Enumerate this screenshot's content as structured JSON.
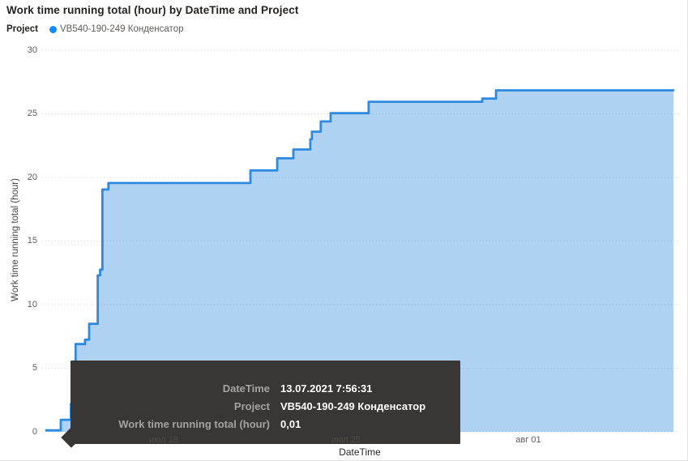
{
  "header": {
    "title": "Work time running total (hour) by DateTime and Project"
  },
  "legend": {
    "label": "Project",
    "item": "VB540-190-249 Конденсатор",
    "dot_color": "#118DFF"
  },
  "chart_data": {
    "type": "area",
    "title": "Work time running total (hour) by DateTime and Project",
    "xlabel": "DateTime",
    "ylabel": "Work time running total (hour)",
    "x_unit": "days since 2021-07-13 00:00",
    "xlim": [
      0.49,
      24.57
    ],
    "ylim": [
      0,
      30
    ],
    "yticks": [
      0,
      5,
      10,
      15,
      20,
      25,
      30
    ],
    "xticks": [
      {
        "t": 5,
        "label": "июл 18",
        "dimmed": true
      },
      {
        "t": 12,
        "label": "июл 25",
        "dimmed": true
      },
      {
        "t": 19,
        "label": "авг 01",
        "dimmed": false
      }
    ],
    "grid": "dotted-horizontal",
    "legend_position": "top-left",
    "series": [
      {
        "name": "VB540-190-249 Конденсатор",
        "line_color": "#2E8AE0",
        "fill_color": "rgba(46,138,224,0.38)",
        "step_points": [
          [
            0.49,
            0.12
          ],
          [
            1.05,
            0.12
          ],
          [
            1.05,
            0.95
          ],
          [
            1.44,
            0.95
          ],
          [
            1.44,
            2.2
          ],
          [
            1.5,
            2.2
          ],
          [
            1.5,
            3.6
          ],
          [
            1.56,
            3.6
          ],
          [
            1.56,
            5.0
          ],
          [
            1.62,
            5.0
          ],
          [
            1.62,
            6.9
          ],
          [
            1.98,
            6.9
          ],
          [
            1.98,
            7.25
          ],
          [
            2.14,
            7.25
          ],
          [
            2.14,
            8.5
          ],
          [
            2.47,
            8.5
          ],
          [
            2.47,
            12.3
          ],
          [
            2.56,
            12.3
          ],
          [
            2.56,
            12.75
          ],
          [
            2.65,
            12.75
          ],
          [
            2.65,
            19.05
          ],
          [
            2.88,
            19.05
          ],
          [
            2.88,
            19.56
          ],
          [
            8.33,
            19.56
          ],
          [
            8.33,
            20.55
          ],
          [
            9.36,
            20.55
          ],
          [
            9.36,
            21.5
          ],
          [
            9.98,
            21.5
          ],
          [
            9.98,
            22.2
          ],
          [
            10.63,
            22.2
          ],
          [
            10.63,
            23.0
          ],
          [
            10.69,
            23.0
          ],
          [
            10.69,
            23.6
          ],
          [
            11.03,
            23.6
          ],
          [
            11.03,
            24.4
          ],
          [
            11.41,
            24.4
          ],
          [
            11.41,
            25.05
          ],
          [
            12.87,
            25.05
          ],
          [
            12.87,
            25.95
          ],
          [
            17.23,
            25.95
          ],
          [
            17.23,
            26.2
          ],
          [
            17.76,
            26.2
          ],
          [
            17.76,
            26.85
          ],
          [
            24.57,
            26.85
          ]
        ]
      }
    ]
  },
  "tooltip": {
    "bg": "#383735",
    "rows": [
      {
        "label": "DateTime",
        "value": "13.07.2021 7:56:31"
      },
      {
        "label": "Project",
        "value": "VB540-190-249 Конденсатор"
      },
      {
        "label": "Work time running total (hour)",
        "value": "0,01"
      }
    ]
  }
}
